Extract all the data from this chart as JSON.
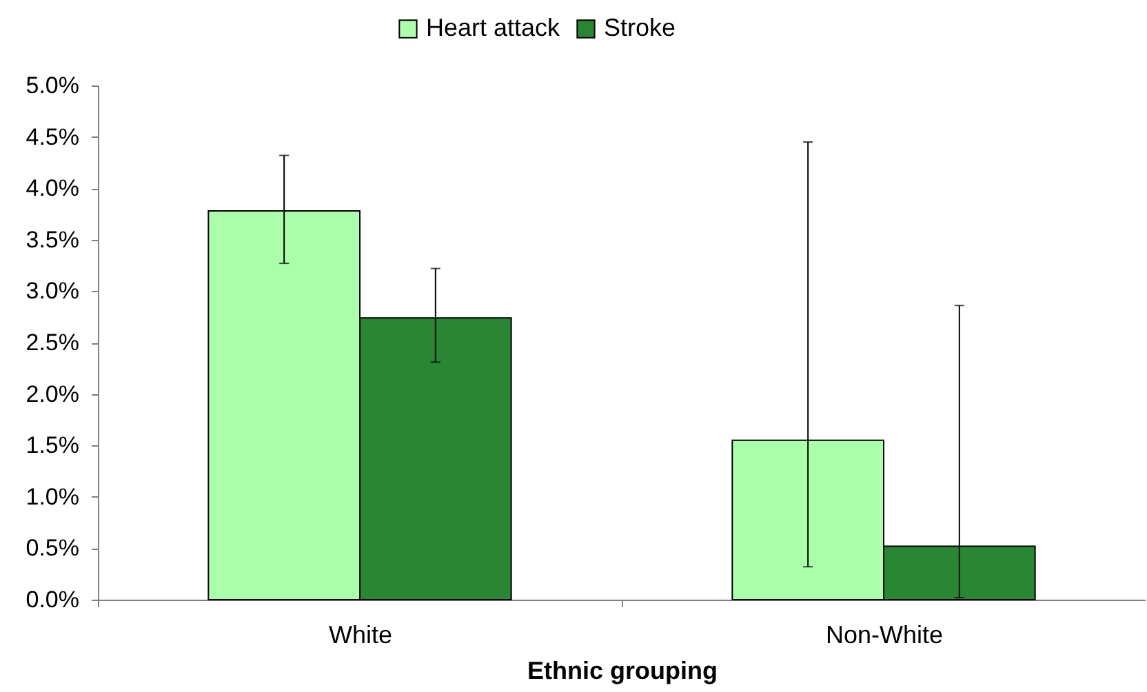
{
  "chart_data": {
    "type": "bar",
    "xlabel": "Ethnic grouping",
    "categories": [
      "White",
      "Non-White"
    ],
    "series": [
      {
        "name": "Heart attack",
        "color": "#aaffaa",
        "values": [
          3.78,
          1.55
        ],
        "errors": [
          [
            3.27,
            4.32
          ],
          [
            0.32,
            4.45
          ]
        ]
      },
      {
        "name": "Stroke",
        "color": "#298632",
        "values": [
          2.74,
          0.52
        ],
        "errors": [
          [
            2.31,
            3.22
          ],
          [
            0.02,
            2.86
          ]
        ]
      }
    ],
    "ylim": [
      0,
      5
    ],
    "yticks": [
      {
        "value": 0,
        "label": "0.0%"
      },
      {
        "value": 0.5,
        "label": "0.5%"
      },
      {
        "value": 1,
        "label": "1.0%"
      },
      {
        "value": 1.5,
        "label": "1.5%"
      },
      {
        "value": 2,
        "label": "2.0%"
      },
      {
        "value": 2.5,
        "label": "2.5%"
      },
      {
        "value": 3,
        "label": "3.0%"
      },
      {
        "value": 3.5,
        "label": "3.5%"
      },
      {
        "value": 4,
        "label": "4.0%"
      },
      {
        "value": 4.5,
        "label": "4.5%"
      },
      {
        "value": 5,
        "label": "5.0%"
      }
    ],
    "grid": false,
    "legend": "top"
  }
}
